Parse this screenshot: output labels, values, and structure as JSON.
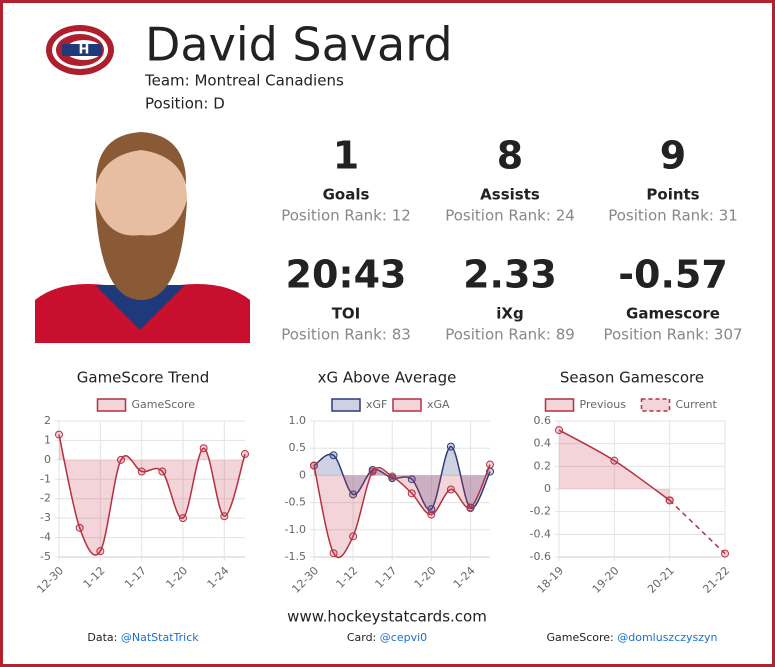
{
  "header": {
    "name": "David Savard",
    "team": "Team: Montreal Canadiens",
    "position": "Position: D"
  },
  "stats": [
    {
      "value": "1",
      "label": "Goals",
      "rank": "Position Rank: 12"
    },
    {
      "value": "8",
      "label": "Assists",
      "rank": "Position Rank: 24"
    },
    {
      "value": "9",
      "label": "Points",
      "rank": "Position Rank: 31"
    },
    {
      "value": "20:43",
      "label": "TOI",
      "rank": "Position Rank: 83"
    },
    {
      "value": "2.33",
      "label": "iXg",
      "rank": "Position Rank: 89"
    },
    {
      "value": "-0.57",
      "label": "Gamescore",
      "rank": "Position Rank: 307"
    }
  ],
  "chart_data": [
    {
      "type": "line",
      "title": "GameScore Trend",
      "categories": [
        "12-30",
        null,
        "1-12",
        null,
        "1-17",
        null,
        "1-20",
        null,
        "1-24",
        null
      ],
      "series": [
        {
          "name": "GameScore",
          "color": "#b5303f",
          "fill": "rgba(200,60,80,0.22)",
          "area": true,
          "dash": false,
          "values": [
            1.3,
            -3.5,
            -4.7,
            0.0,
            -0.6,
            -0.6,
            -3.0,
            0.6,
            -2.9,
            0.3
          ]
        }
      ],
      "ylim": [
        -5,
        2
      ],
      "yticks": [
        -5,
        -4,
        -3,
        -2,
        -1,
        0,
        1,
        2
      ],
      "grid": true
    },
    {
      "type": "line",
      "title": "xG Above Average",
      "categories": [
        "12-30",
        null,
        "1-12",
        null,
        "1-17",
        null,
        "1-20",
        null,
        "1-24",
        null
      ],
      "series": [
        {
          "name": "xGF",
          "color": "#2d3a7a",
          "fill": "rgba(60,70,140,0.25)",
          "area": true,
          "dash": false,
          "values": [
            0.18,
            0.37,
            -0.35,
            0.1,
            -0.05,
            -0.07,
            -0.62,
            0.53,
            -0.6,
            0.07
          ]
        },
        {
          "name": "xGA",
          "color": "#b5303f",
          "fill": "rgba(200,60,80,0.22)",
          "area": true,
          "dash": false,
          "values": [
            0.18,
            -1.43,
            -1.12,
            0.07,
            -0.02,
            -0.33,
            -0.72,
            -0.26,
            -0.59,
            0.2
          ]
        }
      ],
      "ylim": [
        -1.5,
        1
      ],
      "yticks": [
        -1.5,
        {
          "value": -1,
          "label": "-1.0"
        },
        -0.5,
        0,
        0.5,
        {
          "value": 1,
          "label": "1.0"
        }
      ],
      "grid": true
    },
    {
      "type": "line",
      "title": "Season Gamescore",
      "categories": [
        "18-19",
        "19-20",
        "20-21",
        "21-22"
      ],
      "series": [
        {
          "name": "Previous",
          "color": "#b5303f",
          "fill": "rgba(200,60,80,0.22)",
          "area": true,
          "dash": false,
          "values": [
            0.52,
            0.25,
            -0.1,
            null
          ]
        },
        {
          "name": "Current",
          "color": "#b5303f",
          "fill": "rgba(200,60,80,0.22)",
          "area": false,
          "dash": true,
          "values": [
            null,
            null,
            -0.1,
            -0.57
          ]
        }
      ],
      "ylim": [
        -0.6,
        0.6
      ],
      "yticks": [
        -0.6,
        -0.4,
        -0.2,
        0,
        0.2,
        0.4,
        0.6
      ],
      "grid": true
    }
  ],
  "footer": {
    "website": "www.hockeystatcards.com",
    "credits": [
      {
        "label": "Data:",
        "handle": "@NatStatTrick"
      },
      {
        "label": "Card:",
        "handle": "@cepvi0"
      },
      {
        "label": "GameScore:",
        "handle": "@domluszczyszyn"
      }
    ]
  }
}
